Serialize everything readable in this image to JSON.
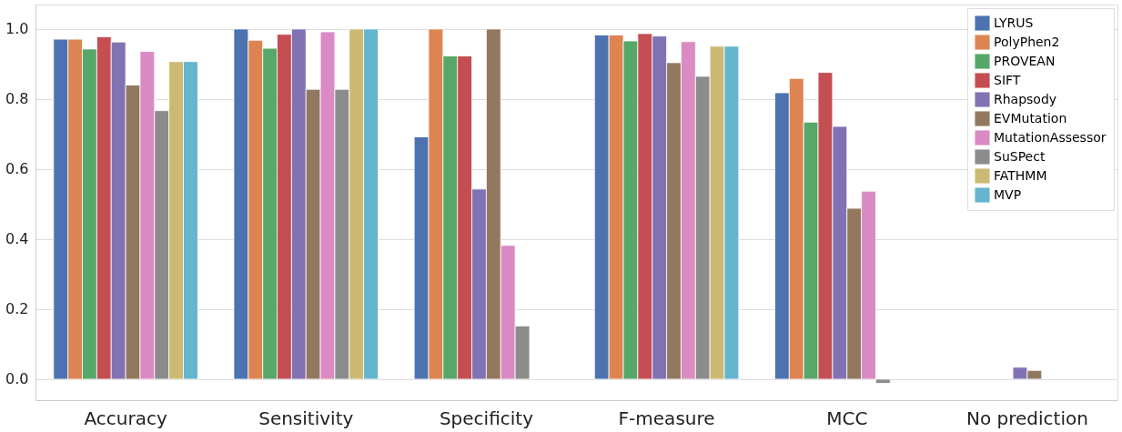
{
  "chart_data": {
    "type": "bar",
    "categories": [
      "Accuracy",
      "Sensitivity",
      "Specificity",
      "F-measure",
      "MCC",
      "No prediction"
    ],
    "ylim": [
      -0.06,
      1.07
    ],
    "yticks": [
      {
        "value": 0,
        "label": "0.0"
      },
      {
        "value": 0.2,
        "label": "0.2"
      },
      {
        "value": 0.4,
        "label": "0.4"
      },
      {
        "value": 0.6,
        "label": "0.6"
      },
      {
        "value": 0.8,
        "label": "0.8"
      },
      {
        "value": 1,
        "label": "1.0"
      }
    ],
    "grid": "y",
    "legend": "top right",
    "series": [
      {
        "name": "LYRUS",
        "color": "#4c72b0",
        "values": [
          0.971,
          1.0,
          0.692,
          0.983,
          0.818,
          null
        ]
      },
      {
        "name": "PolyPhen2",
        "color": "#dd8452",
        "values": [
          0.971,
          0.968,
          1.0,
          0.983,
          0.859,
          null
        ]
      },
      {
        "name": "PROVEAN",
        "color": "#55a868",
        "values": [
          0.943,
          0.945,
          0.923,
          0.966,
          0.734,
          null
        ]
      },
      {
        "name": "SIFT",
        "color": "#c44e52",
        "values": [
          0.978,
          0.985,
          0.923,
          0.987,
          0.876,
          null
        ]
      },
      {
        "name": "Rhapsody",
        "color": "#8172b3",
        "values": [
          0.963,
          1.0,
          0.543,
          0.98,
          0.722,
          0.034
        ]
      },
      {
        "name": "EVMutation",
        "color": "#937860",
        "values": [
          0.84,
          0.828,
          1.0,
          0.904,
          0.488,
          0.025
        ]
      },
      {
        "name": "MutationAssessor",
        "color": "#da8bc3",
        "values": [
          0.936,
          0.992,
          0.382,
          0.964,
          0.537,
          null
        ]
      },
      {
        "name": "SuSPect",
        "color": "#8c8c8c",
        "values": [
          0.767,
          0.828,
          0.152,
          0.865,
          -0.012,
          null
        ]
      },
      {
        "name": "FATHMM",
        "color": "#ccb974",
        "values": [
          0.907,
          1.0,
          null,
          0.951,
          null,
          null
        ]
      },
      {
        "name": "MVP",
        "color": "#64b5cd",
        "values": [
          0.907,
          1.0,
          null,
          0.951,
          null,
          null
        ]
      }
    ]
  }
}
